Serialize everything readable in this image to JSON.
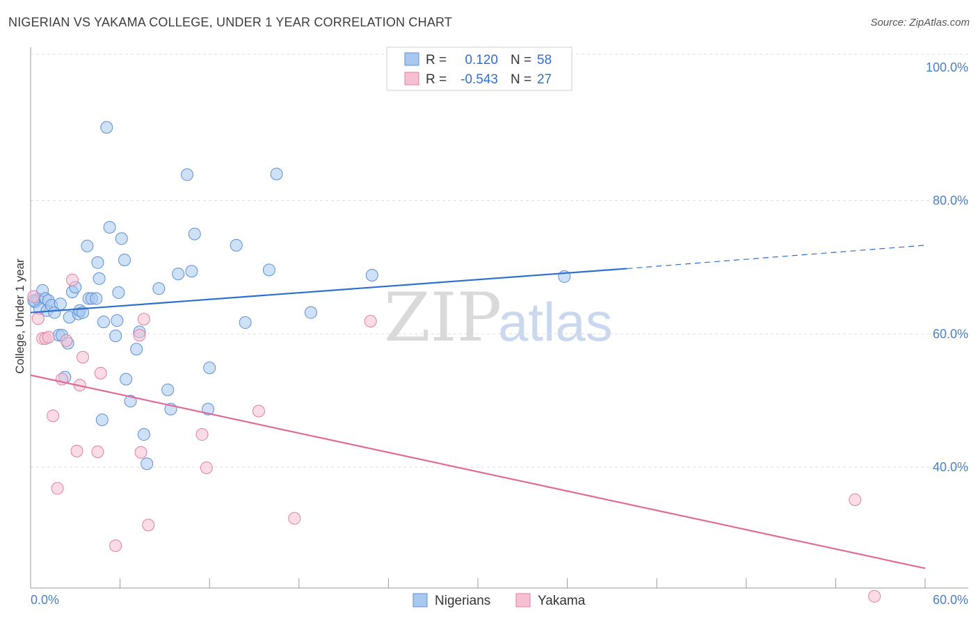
{
  "header": {
    "title": "NIGERIAN VS YAKAMA COLLEGE, UNDER 1 YEAR CORRELATION CHART",
    "source": "Source: ZipAtlas.com"
  },
  "legend": {
    "r_label": "R =",
    "n_label": "N =",
    "series": [
      {
        "name": "Nigerians",
        "r": "0.120",
        "n": "58",
        "color": "#a8c8f0",
        "stroke": "#5b8fd6"
      },
      {
        "name": "Yakama",
        "r": "-0.543",
        "n": "27",
        "color": "#f6c0d2",
        "stroke": "#e07fa0"
      }
    ]
  },
  "watermark": {
    "zip": "ZIP",
    "atlas": "atlas"
  },
  "chart_data": {
    "type": "scatter",
    "title": "NIGERIAN VS YAKAMA COLLEGE, UNDER 1 YEAR CORRELATION CHART",
    "xlabel": "",
    "ylabel": "College, Under 1 year",
    "xlim": [
      0,
      60
    ],
    "ylim": [
      21,
      102
    ],
    "x_tick_labels": [
      "0.0%",
      "60.0%"
    ],
    "y_ticks": [
      40,
      60,
      80,
      100
    ],
    "y_tick_labels": [
      "40.0%",
      "60.0%",
      "80.0%",
      "100.0%"
    ],
    "grid": true,
    "legend_position": "top-center",
    "series": [
      {
        "name": "Nigerians",
        "color": "#5b8fd6",
        "fill": "#a8c8f0",
        "trend": {
          "x": [
            0,
            40
          ],
          "y": [
            63.2,
            69.8
          ],
          "dashed_x": [
            40,
            60
          ],
          "dashed_y": [
            69.8,
            73.3
          ]
        },
        "points": [
          [
            0.3,
            64.8
          ],
          [
            0.5,
            65.2
          ],
          [
            0.6,
            63.8
          ],
          [
            0.8,
            66.5
          ],
          [
            1.0,
            65.3
          ],
          [
            1.1,
            63.5
          ],
          [
            1.2,
            65.0
          ],
          [
            1.4,
            64.3
          ],
          [
            1.6,
            63.2
          ],
          [
            1.9,
            59.8
          ],
          [
            2.0,
            64.5
          ],
          [
            2.1,
            59.8
          ],
          [
            2.3,
            53.5
          ],
          [
            2.5,
            58.6
          ],
          [
            2.6,
            62.5
          ],
          [
            2.8,
            66.3
          ],
          [
            3.0,
            67.0
          ],
          [
            3.2,
            63.0
          ],
          [
            3.3,
            63.5
          ],
          [
            3.5,
            63.2
          ],
          [
            3.8,
            73.2
          ],
          [
            3.9,
            65.3
          ],
          [
            4.1,
            65.3
          ],
          [
            4.4,
            65.3
          ],
          [
            4.5,
            70.7
          ],
          [
            4.6,
            68.3
          ],
          [
            4.8,
            47.1
          ],
          [
            4.9,
            61.8
          ],
          [
            5.1,
            91.0
          ],
          [
            5.3,
            76.0
          ],
          [
            5.7,
            59.7
          ],
          [
            5.8,
            62.0
          ],
          [
            5.9,
            66.2
          ],
          [
            6.1,
            74.3
          ],
          [
            6.3,
            71.1
          ],
          [
            6.4,
            53.2
          ],
          [
            6.7,
            49.9
          ],
          [
            7.1,
            57.7
          ],
          [
            7.3,
            60.3
          ],
          [
            7.6,
            44.9
          ],
          [
            7.8,
            40.5
          ],
          [
            8.6,
            66.8
          ],
          [
            9.2,
            51.6
          ],
          [
            9.4,
            48.7
          ],
          [
            9.9,
            69.0
          ],
          [
            10.5,
            83.9
          ],
          [
            10.8,
            69.4
          ],
          [
            11.0,
            75.0
          ],
          [
            11.9,
            48.7
          ],
          [
            12.0,
            54.9
          ],
          [
            13.8,
            73.3
          ],
          [
            14.4,
            61.7
          ],
          [
            16.0,
            69.6
          ],
          [
            16.5,
            84.0
          ],
          [
            18.8,
            63.2
          ],
          [
            22.9,
            68.8
          ],
          [
            35.8,
            68.6
          ],
          [
            0.2,
            65.0
          ]
        ]
      },
      {
        "name": "Yakama",
        "color": "#e07fa0",
        "fill": "#f6c0d2",
        "trend": {
          "x": [
            0,
            60
          ],
          "y": [
            53.8,
            24.8
          ]
        },
        "points": [
          [
            0.2,
            65.6
          ],
          [
            0.5,
            62.3
          ],
          [
            0.8,
            59.3
          ],
          [
            1.0,
            59.3
          ],
          [
            1.2,
            59.5
          ],
          [
            1.5,
            47.7
          ],
          [
            1.8,
            36.8
          ],
          [
            2.1,
            53.2
          ],
          [
            2.4,
            59.0
          ],
          [
            2.8,
            68.1
          ],
          [
            3.1,
            42.4
          ],
          [
            3.3,
            52.3
          ],
          [
            3.5,
            56.5
          ],
          [
            4.5,
            42.3
          ],
          [
            4.7,
            54.1
          ],
          [
            5.7,
            28.2
          ],
          [
            7.3,
            59.8
          ],
          [
            7.4,
            42.2
          ],
          [
            7.6,
            62.2
          ],
          [
            7.9,
            31.3
          ],
          [
            11.5,
            44.9
          ],
          [
            11.8,
            39.9
          ],
          [
            15.3,
            48.4
          ],
          [
            17.7,
            32.3
          ],
          [
            22.8,
            61.9
          ],
          [
            55.3,
            35.1
          ],
          [
            56.6,
            20.6
          ]
        ]
      }
    ]
  }
}
